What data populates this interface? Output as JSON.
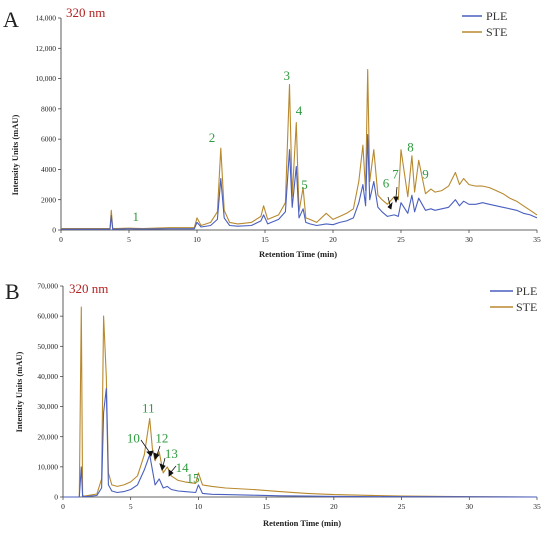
{
  "colors": {
    "PLE": "#4a5fbf",
    "STE": "#b8892e",
    "peak_label": "#2e9b3e",
    "wavelength": "#b22222",
    "axis": "#333333"
  },
  "chart_data": [
    {
      "type": "line",
      "panel": "A",
      "wavelength_label": "320 nm",
      "xlabel": "Retention Time (min)",
      "ylabel": "Intensity Units (mAU)",
      "xlim": [
        0,
        35
      ],
      "ylim": [
        0,
        14000
      ],
      "xticks": [
        "0",
        "5",
        "10",
        "15",
        "20",
        "25",
        "30",
        "35"
      ],
      "yticks": [
        "0",
        "2000",
        "4000",
        "6000",
        "8000",
        "10,000",
        "12,000",
        "14,000"
      ],
      "legend": [
        "PLE",
        "STE"
      ],
      "legend_position": "top-right",
      "series": [
        {
          "name": "PLE",
          "color": "#4a5fbf",
          "x": [
            0,
            2,
            3.6,
            3.7,
            3.8,
            4.0,
            5.0,
            6.0,
            8.0,
            9.8,
            10.0,
            10.3,
            11.0,
            11.5,
            11.75,
            12.0,
            12.4,
            13.0,
            14.0,
            14.7,
            14.9,
            15.2,
            16.0,
            16.5,
            16.8,
            17.0,
            17.3,
            17.5,
            17.8,
            18.0,
            18.3,
            18.8,
            19.5,
            20.0,
            20.5,
            21.0,
            21.5,
            21.9,
            22.2,
            22.4,
            22.55,
            22.7,
            23.0,
            23.3,
            23.6,
            24.0,
            24.5,
            24.8,
            25.0,
            25.5,
            25.8,
            26.0,
            26.3,
            26.8,
            27.2,
            27.5,
            28.0,
            28.5,
            29.0,
            29.3,
            29.6,
            30.0,
            30.5,
            31.0,
            31.5,
            32.0,
            32.5,
            33.0,
            33.5,
            34.0,
            34.5,
            35.0
          ],
          "y": [
            50,
            50,
            50,
            950,
            50,
            50,
            80,
            60,
            80,
            80,
            500,
            200,
            300,
            700,
            3400,
            800,
            300,
            250,
            300,
            600,
            1000,
            400,
            700,
            1200,
            5300,
            1500,
            4200,
            800,
            1400,
            500,
            400,
            300,
            400,
            350,
            500,
            600,
            800,
            1800,
            3000,
            1600,
            6300,
            2000,
            3200,
            1500,
            1200,
            900,
            1000,
            900,
            1800,
            1100,
            2300,
            1200,
            2100,
            1300,
            1400,
            1300,
            1400,
            1500,
            2000,
            1600,
            1900,
            1700,
            1700,
            1800,
            1700,
            1600,
            1500,
            1400,
            1300,
            1100,
            1000,
            800
          ]
        },
        {
          "name": "STE",
          "color": "#b8892e",
          "x": [
            0,
            2,
            3.6,
            3.7,
            3.8,
            4.0,
            5.0,
            6.0,
            8.0,
            9.8,
            10.0,
            10.3,
            11.0,
            11.5,
            11.75,
            12.0,
            12.4,
            13.0,
            14.0,
            14.7,
            14.9,
            15.2,
            16.0,
            16.5,
            16.8,
            17.0,
            17.3,
            17.5,
            17.8,
            18.0,
            18.3,
            18.8,
            19.5,
            20.0,
            20.5,
            21.0,
            21.5,
            21.9,
            22.2,
            22.4,
            22.55,
            22.7,
            23.0,
            23.3,
            23.6,
            24.0,
            24.5,
            24.8,
            25.0,
            25.5,
            25.8,
            26.0,
            26.3,
            26.8,
            27.2,
            27.5,
            28.0,
            28.5,
            29.0,
            29.3,
            29.6,
            30.0,
            30.5,
            31.0,
            31.5,
            32.0,
            32.5,
            33.0,
            33.5,
            34.0,
            34.5,
            35.0
          ],
          "y": [
            100,
            100,
            100,
            1300,
            100,
            100,
            120,
            100,
            150,
            150,
            800,
            300,
            500,
            1200,
            5400,
            1300,
            500,
            400,
            500,
            900,
            1600,
            700,
            1000,
            1800,
            9600,
            2200,
            7100,
            1200,
            2800,
            800,
            700,
            500,
            1100,
            700,
            900,
            1100,
            1400,
            3200,
            5600,
            2600,
            10600,
            3200,
            5300,
            2300,
            2000,
            1700,
            2200,
            2000,
            5300,
            2200,
            4900,
            2500,
            4600,
            2400,
            2700,
            2500,
            2600,
            2900,
            3800,
            3000,
            3400,
            3000,
            2900,
            2900,
            2800,
            2600,
            2400,
            2100,
            1900,
            1600,
            1300,
            1000
          ]
        }
      ],
      "peak_labels": [
        {
          "text": "1",
          "x": 5.5,
          "y": 600
        },
        {
          "text": "2",
          "x": 11.1,
          "y": 5800
        },
        {
          "text": "3",
          "x": 16.6,
          "y": 9900
        },
        {
          "text": "4",
          "x": 17.5,
          "y": 7600
        },
        {
          "text": "5",
          "x": 17.9,
          "y": 2700
        },
        {
          "text": "6",
          "x": 23.9,
          "y": 2800
        },
        {
          "text": "7",
          "x": 24.6,
          "y": 3400
        },
        {
          "text": "8",
          "x": 25.7,
          "y": 5200
        },
        {
          "text": "9",
          "x": 26.8,
          "y": 3400
        }
      ]
    },
    {
      "type": "line",
      "panel": "B",
      "wavelength_label": "320 nm",
      "xlabel": "Retention Time (min)",
      "ylabel": "Intensity Units (mAU)",
      "xlim": [
        0,
        35
      ],
      "ylim": [
        0,
        70000
      ],
      "xticks": [
        "0",
        "5",
        "10",
        "15",
        "20",
        "25",
        "30",
        "35"
      ],
      "yticks": [
        "0",
        "10,000",
        "20,000",
        "30,000",
        "40,000",
        "50,000",
        "60,000",
        "70,000"
      ],
      "legend": [
        "PLE",
        "STE"
      ],
      "legend_position": "top-right",
      "series": [
        {
          "name": "PLE",
          "color": "#4a5fbf",
          "x": [
            0,
            1.2,
            1.35,
            1.45,
            1.6,
            2.5,
            2.85,
            3.0,
            3.2,
            3.35,
            3.6,
            4.0,
            4.5,
            5.0,
            5.5,
            6.0,
            6.4,
            6.6,
            6.8,
            7.1,
            7.4,
            7.7,
            8.0,
            8.5,
            9.0,
            9.8,
            10.0,
            10.3,
            11.0,
            12.0,
            14.0,
            16.0,
            18.0,
            20.0,
            25.0,
            30.0,
            35.0
          ],
          "y": [
            0,
            0,
            10000,
            200,
            100,
            500,
            3000,
            28000,
            36000,
            4000,
            2000,
            1500,
            1800,
            2500,
            4000,
            9000,
            14000,
            9000,
            4000,
            6000,
            3000,
            3500,
            2500,
            2000,
            1800,
            1500,
            4000,
            1200,
            900,
            800,
            600,
            400,
            300,
            200,
            100,
            50,
            0
          ]
        },
        {
          "name": "STE",
          "color": "#b8892e",
          "x": [
            0,
            1.2,
            1.35,
            1.45,
            1.6,
            2.5,
            2.85,
            3.0,
            3.2,
            3.35,
            3.6,
            4.0,
            4.5,
            5.0,
            5.5,
            6.0,
            6.4,
            6.6,
            6.8,
            7.1,
            7.4,
            7.7,
            8.0,
            8.5,
            9.0,
            9.8,
            10.0,
            10.3,
            11.0,
            12.0,
            14.0,
            16.0,
            18.0,
            20.0,
            25.0,
            30.0,
            35.0
          ],
          "y": [
            0,
            0,
            63000,
            500,
            300,
            1000,
            6000,
            60000,
            40000,
            8000,
            4000,
            3500,
            4000,
            5000,
            7000,
            14000,
            26000,
            16000,
            12000,
            15000,
            8000,
            10000,
            7000,
            5500,
            5000,
            4500,
            8000,
            4000,
            3500,
            3000,
            2500,
            1800,
            1200,
            800,
            300,
            100,
            0
          ]
        }
      ],
      "peak_labels": [
        {
          "text": "10",
          "x": 5.2,
          "y": 18000
        },
        {
          "text": "11",
          "x": 6.3,
          "y": 28000
        },
        {
          "text": "12",
          "x": 7.3,
          "y": 18000
        },
        {
          "text": "13",
          "x": 8.0,
          "y": 13000
        },
        {
          "text": "14",
          "x": 8.8,
          "y": 8300
        },
        {
          "text": "15",
          "x": 9.6,
          "y": 4800
        }
      ]
    }
  ]
}
